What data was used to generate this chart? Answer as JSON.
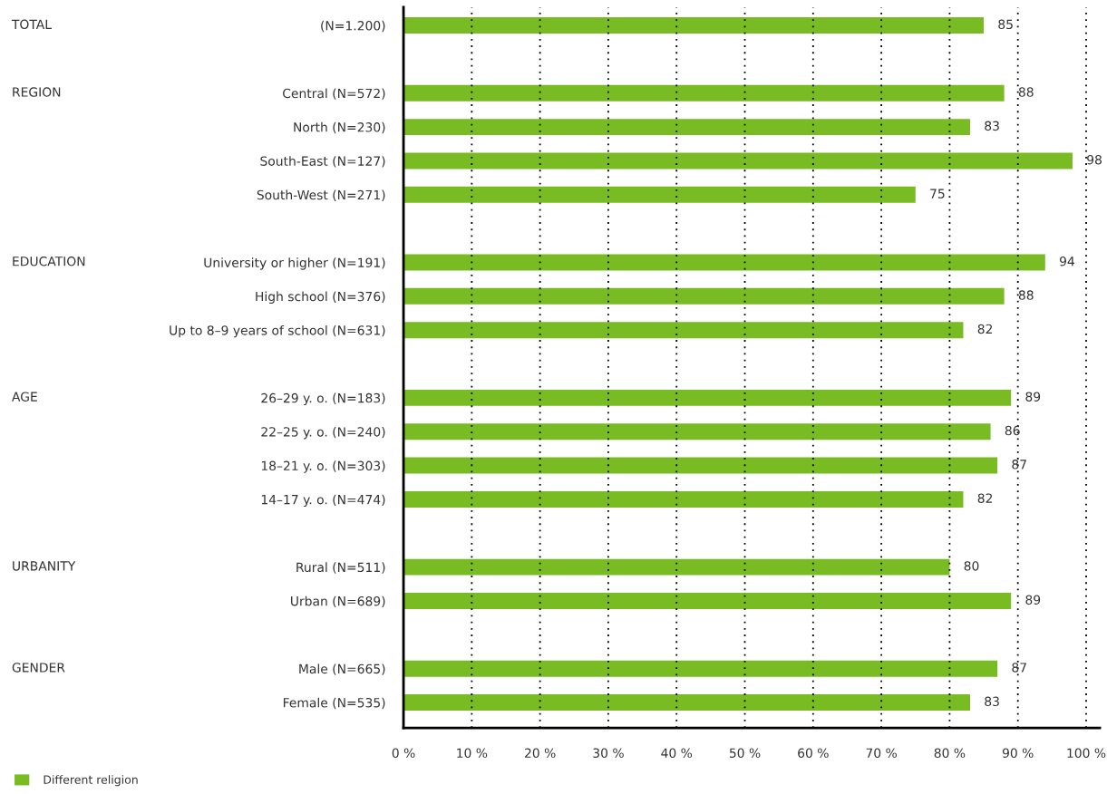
{
  "chart_data": {
    "type": "bar",
    "orientation": "horizontal",
    "categories": [
      "(N=1.200)",
      null,
      "Central (N=572)",
      "North (N=230)",
      "South-East (N=127)",
      "South-West (N=271)",
      null,
      "University or higher (N=191)",
      "High school (N=376)",
      "Up to 8–9 years of school (N=631)",
      null,
      "26–29 y. o. (N=183)",
      "22–25 y. o. (N=240)",
      "18–21 y. o. (N=303)",
      "14–17 y. o. (N=474)",
      null,
      "Rural (N=511)",
      "Urban (N=689)",
      null,
      "Male (N=665)",
      "Female (N=535)"
    ],
    "series": [
      {
        "name": "Different religion",
        "color": "#78bb22",
        "values": [
          85,
          null,
          88,
          83,
          98,
          75,
          null,
          94,
          88,
          82,
          null,
          89,
          86,
          87,
          82,
          null,
          80,
          89,
          null,
          87,
          83
        ]
      }
    ],
    "xlim": [
      0,
      102
    ],
    "xticks": [
      {
        "value": 0,
        "label": "0 %"
      },
      {
        "value": 10,
        "label": "10 %"
      },
      {
        "value": 20,
        "label": "20 %"
      },
      {
        "value": 30,
        "label": "30 %"
      },
      {
        "value": 40,
        "label": "40 %"
      },
      {
        "value": 50,
        "label": "50 %"
      },
      {
        "value": 60,
        "label": "60 %"
      },
      {
        "value": 70,
        "label": "70 %"
      },
      {
        "value": 80,
        "label": "80 %"
      },
      {
        "value": 90,
        "label": "90 %"
      },
      {
        "value": 100,
        "label": "100 %"
      }
    ],
    "annotations": [
      "TOTAL",
      "REGION",
      "EDUCATION",
      "AGE",
      "URBANITY",
      "GENDER"
    ],
    "grid": "x",
    "legend": "bottom left",
    "data_labels": true
  }
}
